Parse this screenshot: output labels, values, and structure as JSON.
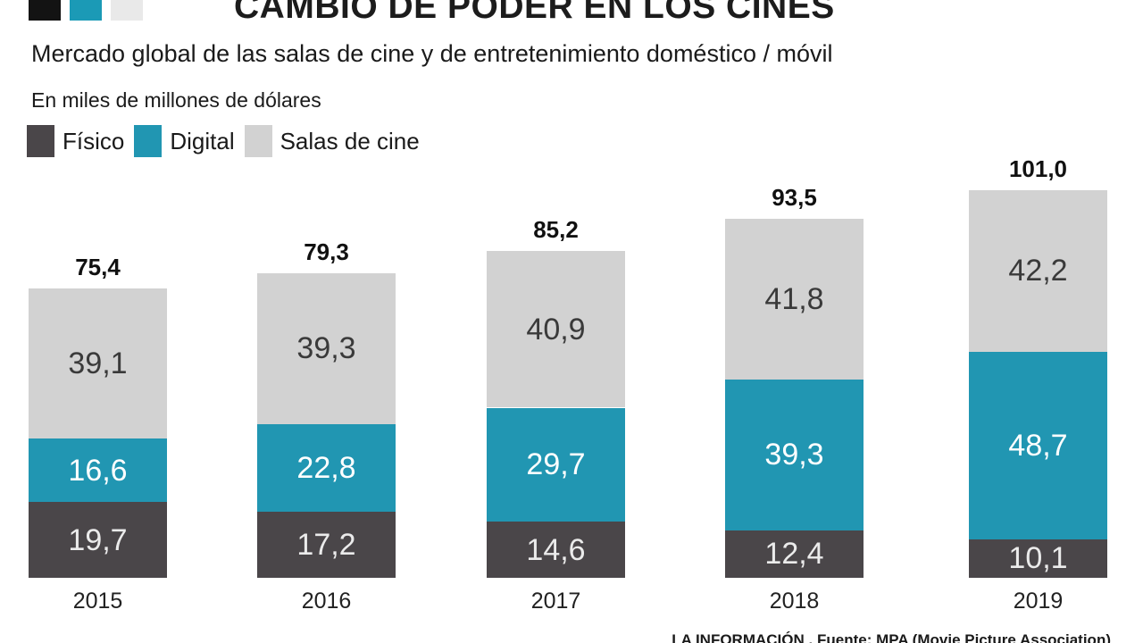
{
  "header": {
    "kicker_colors": [
      "#131313",
      "#1b9ab6",
      "#e9e9e9"
    ],
    "title": "CAMBIO DE PODER EN LOS CINES",
    "subtitle": "Mercado global de las salas de cine y de entretenimiento doméstico / móvil",
    "units": "En miles de millones de dólares"
  },
  "chart_data": {
    "type": "bar",
    "stacked": true,
    "title": "CAMBIO DE PODER EN LOS CINES",
    "subtitle": "Mercado global de las salas de cine y de entretenimiento doméstico / móvil",
    "ylabel": "En miles de millones de dólares",
    "grid": false,
    "legend_position": "top-left",
    "categories": [
      "2015",
      "2016",
      "2017",
      "2018",
      "2019"
    ],
    "series": [
      {
        "name": "Físico",
        "color": "#4a4649",
        "label_color": "#ebebeb",
        "values": [
          19.7,
          17.2,
          14.6,
          12.4,
          10.1
        ],
        "labels": [
          "19,7",
          "17,2",
          "14,6",
          "12,4",
          "10,1"
        ]
      },
      {
        "name": "Digital",
        "color": "#2196b2",
        "label_color": "#ffffff",
        "values": [
          16.6,
          22.8,
          29.7,
          39.3,
          48.7
        ],
        "labels": [
          "16,6",
          "22,8",
          "29,7",
          "39,3",
          "48,7"
        ]
      },
      {
        "name": "Salas de cine",
        "color": "#d2d2d2",
        "label_color": "#3a3a3a",
        "values": [
          39.1,
          39.3,
          40.9,
          41.8,
          42.2
        ],
        "labels": [
          "39,1",
          "39,3",
          "40,9",
          "41,8",
          "42,2"
        ]
      }
    ],
    "totals": [
      75.4,
      79.3,
      85.2,
      93.5,
      101.0
    ],
    "total_labels": [
      "75,4",
      "79,3",
      "85,2",
      "93,5",
      "101,0"
    ],
    "ylim": [
      0,
      101.0
    ]
  },
  "footer": {
    "brand": "LA INFORMACIÓN",
    "separator": ".",
    "source": "Fuente: MPA (Movie Picture Association)"
  }
}
